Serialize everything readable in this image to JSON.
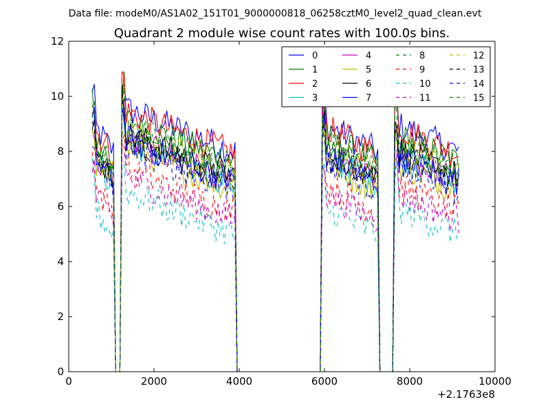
{
  "header": {
    "data_file": "Data file: modeM0/AS1A02_151T01_9000000818_06258cztM0_level2_quad_clean.evt"
  },
  "chart_data": {
    "type": "line",
    "title": "Quadrant 2 module wise count rates with 100.0s bins.",
    "xlabel": "",
    "ylabel": "",
    "x_offset_label": "+2.1763e8",
    "xlim": [
      0,
      10000
    ],
    "ylim": [
      0,
      12
    ],
    "xticks": [
      0,
      2000,
      4000,
      6000,
      8000,
      10000
    ],
    "yticks": [
      0,
      2,
      4,
      6,
      8,
      10,
      12
    ],
    "grid": false,
    "legend_position": "top-right",
    "legend_columns": 4,
    "segments": [
      {
        "start": 550,
        "end": 1050
      },
      {
        "start": 1250,
        "end": 3900
      },
      {
        "start": 5950,
        "end": 7250
      },
      {
        "start": 7650,
        "end": 9150
      }
    ],
    "series": [
      {
        "name": "0",
        "color": "#0000ff",
        "dash": "solid",
        "base": 8.4
      },
      {
        "name": "1",
        "color": "#008000",
        "dash": "solid",
        "base": 8.0
      },
      {
        "name": "2",
        "color": "#ff0000",
        "dash": "solid",
        "base": 8.3
      },
      {
        "name": "3",
        "color": "#00bfbf",
        "dash": "solid",
        "base": 7.2
      },
      {
        "name": "4",
        "color": "#bf00bf",
        "dash": "solid",
        "base": 7.3
      },
      {
        "name": "5",
        "color": "#bfbf00",
        "dash": "solid",
        "base": 7.0
      },
      {
        "name": "6",
        "color": "#000000",
        "dash": "solid",
        "base": 7.5
      },
      {
        "name": "7",
        "color": "#0000ff",
        "dash": "solid",
        "base": 7.3
      },
      {
        "name": "8",
        "color": "#008000",
        "dash": "dashed",
        "base": 7.8
      },
      {
        "name": "9",
        "color": "#ff0000",
        "dash": "dashed",
        "base": 6.2
      },
      {
        "name": "10",
        "color": "#00bfbf",
        "dash": "dashed",
        "base": 5.4
      },
      {
        "name": "11",
        "color": "#bf00bf",
        "dash": "dashed",
        "base": 5.9
      },
      {
        "name": "12",
        "color": "#bfbf00",
        "dash": "dashed",
        "base": 7.6
      },
      {
        "name": "13",
        "color": "#000000",
        "dash": "dashed",
        "base": 7.3
      },
      {
        "name": "14",
        "color": "#0000ff",
        "dash": "dashed",
        "base": 7.0
      },
      {
        "name": "15",
        "color": "#008000",
        "dash": "dashed",
        "base": 7.6
      }
    ]
  }
}
